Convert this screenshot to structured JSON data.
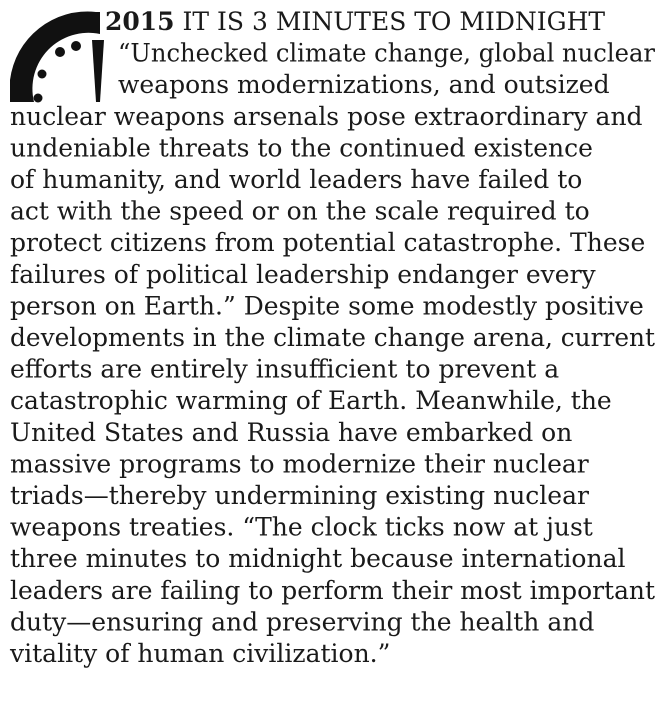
{
  "heading": {
    "year": "2015",
    "title": "IT IS 3 MINUTES TO MIDNIGHT"
  },
  "body_lines": [
    "“Unchecked climate change, global nuclear",
    "weapons modernizations, and outsized",
    "nuclear weapons arsenals pose extraordinary and",
    "undeniable threats to the continued existence",
    "of humanity, and world leaders have failed to",
    "act with the speed or on the scale required to",
    "protect citizens from potential catastrophe. These",
    "failures of political leadership endanger every",
    "person on Earth.” Despite some modestly positive",
    "developments in the climate change arena, current",
    "efforts are entirely insufficient to prevent a",
    "catastrophic warming of Earth. Meanwhile, the",
    "United States and Russia have embarked on",
    "massive programs to modernize their nuclear",
    "triads—thereby undermining existing nuclear",
    "weapons treaties. “The clock ticks now at just",
    "three minutes to midnight because international",
    "leaders are failing to perform their most important",
    "duty—ensuring and preserving the health and",
    "vitality of human civilization.”"
  ]
}
